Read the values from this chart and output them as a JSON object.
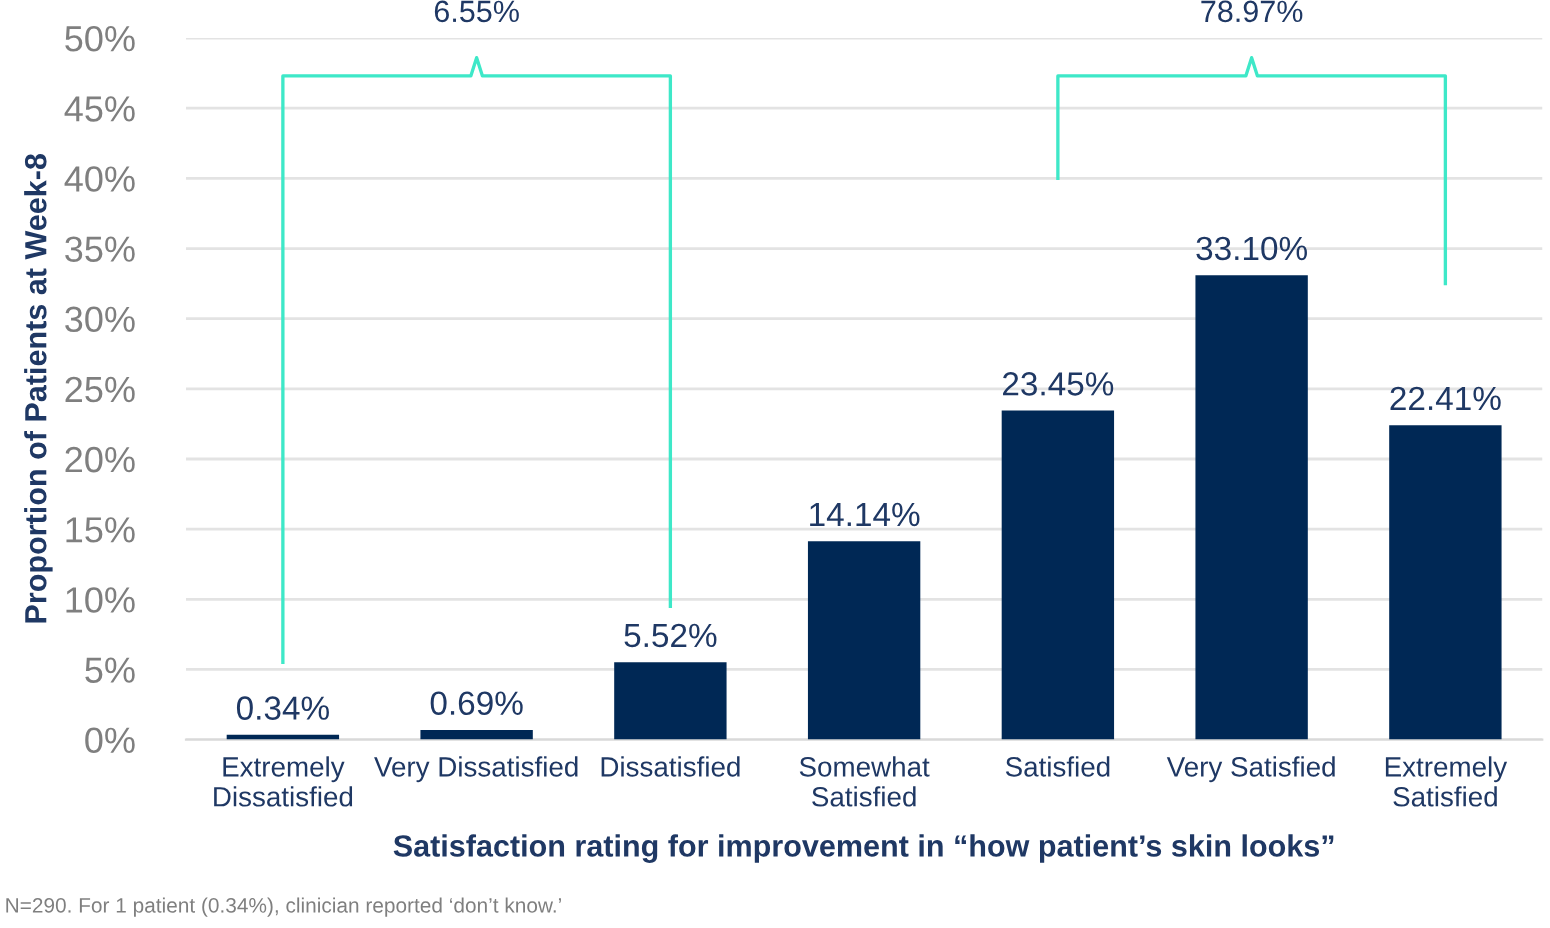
{
  "chart_data": {
    "type": "bar",
    "xlabel": "Satisfaction rating for improvement in “how patient’s skin looks”",
    "ylabel": "Proportion of Patients at Week-8",
    "categories": [
      "Extremely\nDissatisfied",
      "Very Dissatisfied",
      "Dissatisfied",
      "Somewhat\nSatisfied",
      "Satisfied",
      "Very Satisfied",
      "Extremely\nSatisfied"
    ],
    "values": [
      0.34,
      0.69,
      5.52,
      14.14,
      23.45,
      33.1,
      22.41
    ],
    "color": "#002855",
    "value_labels": [
      "0.34%",
      "0.69%",
      "5.52%",
      "14.14%",
      "23.45%",
      "33.10%",
      "22.41%"
    ],
    "ylim": [
      0,
      50
    ],
    "yticks": [
      {
        "value": 0,
        "label": "0%"
      },
      {
        "value": 5,
        "label": "5%"
      },
      {
        "value": 10,
        "label": "10%"
      },
      {
        "value": 15,
        "label": "15%"
      },
      {
        "value": 20,
        "label": "20%"
      },
      {
        "value": 25,
        "label": "25%"
      },
      {
        "value": 30,
        "label": "30%"
      },
      {
        "value": 35,
        "label": "35%"
      },
      {
        "value": 40,
        "label": "40%"
      },
      {
        "value": 45,
        "label": "45%"
      },
      {
        "value": 50,
        "label": "50%"
      }
    ],
    "grid": "y",
    "annotations": [
      "6.55%",
      "78.97%",
      "N=290. For 1 patient (0.34%), clinician reported ‘don’t know.’"
    ]
  }
}
